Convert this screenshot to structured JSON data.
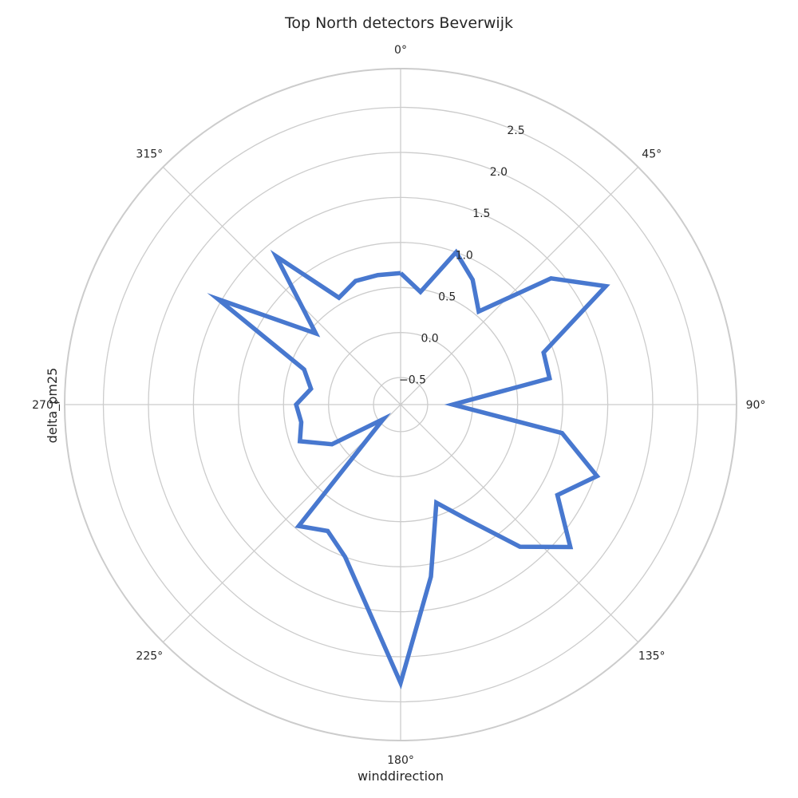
{
  "chart_data": {
    "type": "line",
    "projection": "polar",
    "title": "Top North detectors Beverwijk",
    "xlabel": "winddirection",
    "ylabel": "delta_pm25",
    "theta_direction": "clockwise",
    "theta_zero_location": "north",
    "theta_ticks": [
      0,
      45,
      90,
      135,
      180,
      225,
      270,
      315
    ],
    "theta_tick_labels": [
      "0°",
      "45°",
      "90°",
      "135°",
      "180°",
      "225°",
      "270°",
      "315°"
    ],
    "r_ticks": [
      -0.5,
      0.0,
      0.5,
      1.0,
      1.5,
      2.0,
      2.5
    ],
    "r_tick_labels": [
      "−0.5",
      "0.0",
      "0.5",
      "1.0",
      "1.5",
      "2.0",
      "2.5"
    ],
    "ylim": [
      -0.8,
      2.93
    ],
    "grid": true,
    "series": [
      {
        "x": [
          0,
          10,
          20,
          30,
          40,
          50,
          60,
          70,
          80,
          90,
          100,
          110,
          120,
          130,
          140,
          150,
          160,
          170,
          180,
          190,
          200,
          210,
          220,
          230,
          240,
          250,
          260,
          270,
          280,
          290,
          300,
          310,
          320,
          330,
          340,
          350,
          360
        ],
        "y": [
          0.66,
          0.47,
          1.0,
          0.8,
          0.55,
          1.38,
          1.83,
          0.89,
          0.88,
          -0.22,
          1.02,
          1.52,
          1.21,
          1.66,
          1.26,
          0.67,
          0.36,
          1.14,
          2.29,
          1.44,
          1.0,
          0.82,
          0.96,
          -0.55,
          0.08,
          0.39,
          0.32,
          0.36,
          0.21,
          0.34,
          1.54,
          0.43,
          1.35,
          0.57,
          0.66,
          0.66,
          0.66
        ],
        "color": "#4878CF"
      }
    ]
  }
}
